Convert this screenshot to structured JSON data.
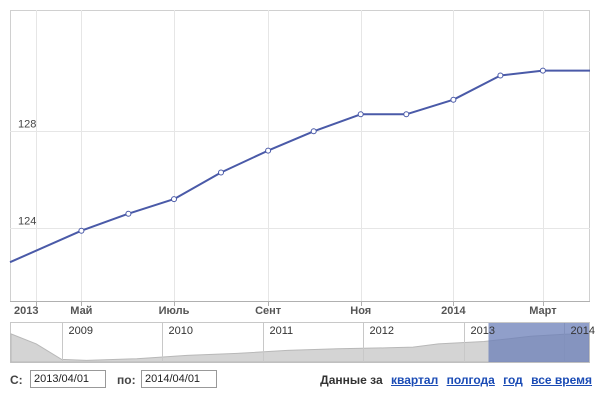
{
  "chart_data": {
    "type": "line",
    "x": [
      "2013-03-15",
      "2013-05-01",
      "2013-06-01",
      "2013-07-01",
      "2013-08-01",
      "2013-09-01",
      "2013-10-01",
      "2013-11-01",
      "2013-12-01",
      "2014-01-01",
      "2014-02-01",
      "2014-03-01",
      "2014-04-01"
    ],
    "series": [
      {
        "values": [
          122.6,
          123.9,
          124.6,
          125.2,
          126.3,
          127.2,
          128.0,
          128.7,
          128.7,
          129.3,
          130.3,
          130.5,
          130.5
        ]
      }
    ],
    "ylim": [
      121,
      133
    ],
    "yticks": [
      124,
      128
    ],
    "x_tick_labels": [
      {
        "label": "2013",
        "x": "2013-04-01"
      },
      {
        "label": "Май",
        "x": "2013-05-01"
      },
      {
        "label": "Июль",
        "x": "2013-07-01"
      },
      {
        "label": "Сент",
        "x": "2013-09-01"
      },
      {
        "label": "Ноя",
        "x": "2013-11-01"
      },
      {
        "label": "2014",
        "x": "2014-01-01"
      },
      {
        "label": "Март",
        "x": "2014-03-01"
      }
    ],
    "grid": true,
    "line_color": "#4a5aa8"
  },
  "navigator": {
    "year_labels": [
      "2009",
      "2010",
      "2011",
      "2012",
      "2013",
      "2014"
    ],
    "selection_start": "2013-04-01",
    "selection_end": "2014-04-01",
    "fill_color": "#d4d4d4",
    "selection_color": "#6b7fb8"
  },
  "date_range": {
    "from_label": "С:",
    "from_value": "2013/04/01",
    "to_label": "по:",
    "to_value": "2014/04/01"
  },
  "period": {
    "label": "Данные за",
    "links": [
      "квартал",
      "полгода",
      "год",
      "все время"
    ]
  }
}
